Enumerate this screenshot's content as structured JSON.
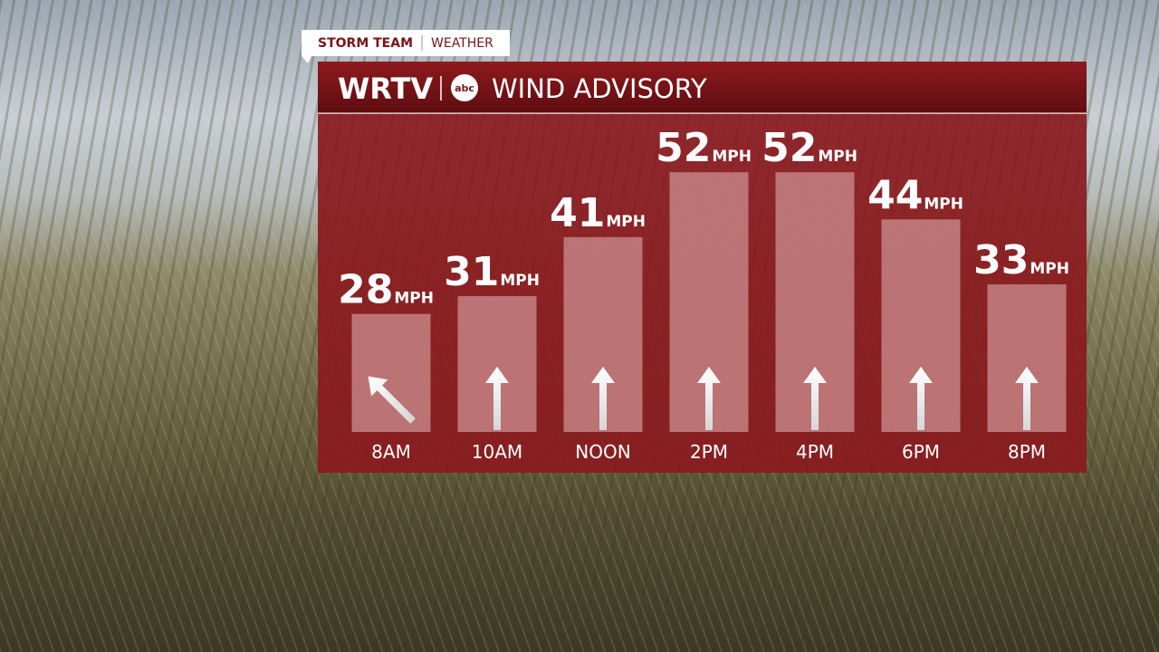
{
  "header": {
    "tab_left": "STORM TEAM",
    "tab_right": "WEATHER",
    "station": "WRTV",
    "network": "abc",
    "title": "WIND ADVISORY"
  },
  "chart_data": {
    "type": "bar",
    "title": "WIND ADVISORY",
    "unit": "MPH",
    "categories": [
      "8AM",
      "10AM",
      "NOON",
      "2PM",
      "4PM",
      "6PM",
      "8PM"
    ],
    "values": [
      28,
      31,
      41,
      52,
      52,
      44,
      33
    ],
    "wind_direction_deg": [
      -45,
      0,
      0,
      0,
      0,
      0,
      0
    ],
    "ylim": [
      8,
      62
    ],
    "color": "#c98a8c"
  }
}
